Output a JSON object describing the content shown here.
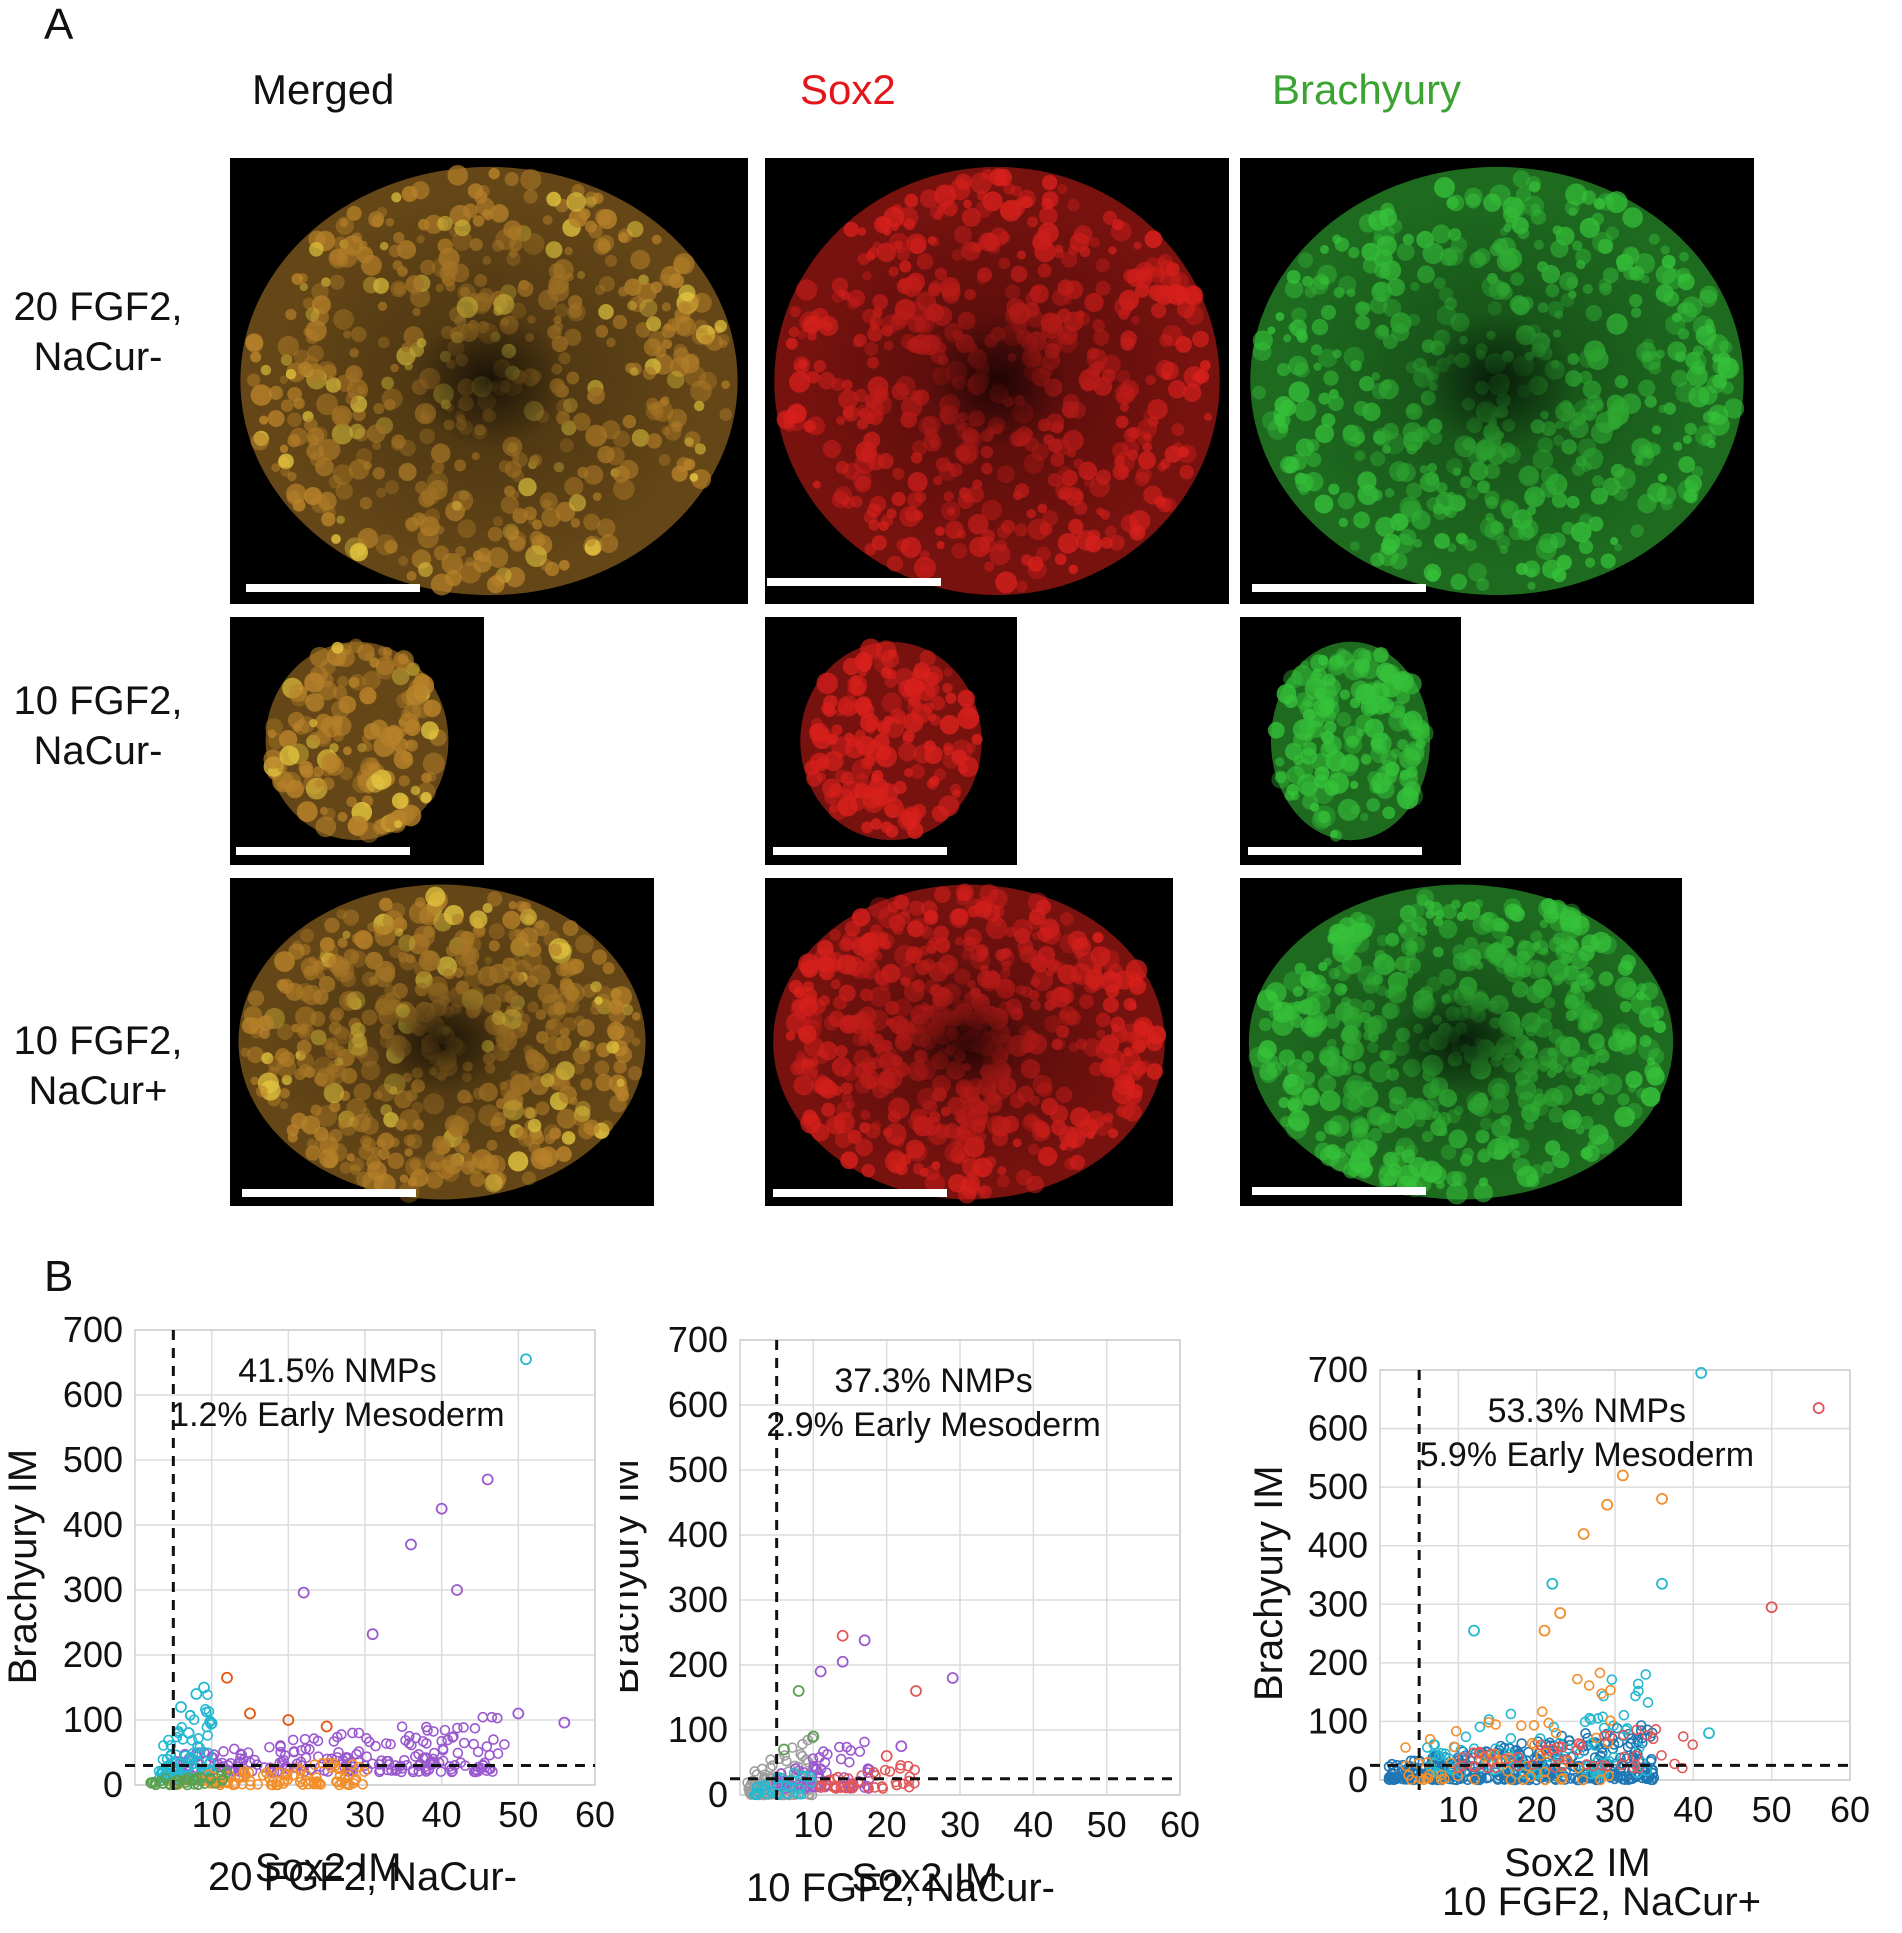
{
  "panel_a": {
    "letter": "A",
    "columns": [
      {
        "label": "Merged",
        "color": "#111111"
      },
      {
        "label": "Sox2",
        "color": "#e3171b"
      },
      {
        "label": "Brachyury",
        "color": "#3aa332"
      }
    ],
    "rows": [
      {
        "line1": "20 FGF2,",
        "line2": "NaCur-"
      },
      {
        "line1": "10 FGF2,",
        "line2": "NaCur-"
      },
      {
        "line1": "10 FGF2,",
        "line2": "NaCur+"
      }
    ],
    "channel_colors": {
      "merged": "#b8822a",
      "sox2": "#d8201c",
      "brachyury": "#36c23a"
    }
  },
  "panel_b": {
    "letter": "B",
    "plots": [
      {
        "caption": "20 FGF2, NaCur-",
        "ylabel": "Brachyury IM",
        "xlabel": "Sox2 IM",
        "annotation_line1": "41.5% NMPs",
        "annotation_line2": "1.2% Early Mesoderm"
      },
      {
        "caption": "10 FGF2, NaCur-",
        "ylabel": "Brachyury IM",
        "xlabel": "Sox2 IM",
        "annotation_line1": "37.3% NMPs",
        "annotation_line2": "2.9% Early Mesoderm"
      },
      {
        "caption": "10 FGF2, NaCur+",
        "ylabel": "Brachyury IM",
        "xlabel": "Sox2 IM",
        "annotation_line1": "53.3% NMPs",
        "annotation_line2": "5.9% Early Mesoderm"
      }
    ]
  },
  "chart_data": [
    {
      "type": "scatter",
      "title": "20 FGF2, NaCur-",
      "xlabel": "Sox2 IM",
      "ylabel": "Brachyury IM",
      "xlim": [
        0,
        60
      ],
      "ylim": [
        0,
        700
      ],
      "xticks": [
        10,
        20,
        30,
        40,
        50,
        60
      ],
      "yticks": [
        0,
        100,
        200,
        300,
        400,
        500,
        600,
        700
      ],
      "grid": true,
      "thresholds": {
        "x": 5,
        "y": 30
      },
      "annotations": [
        "41.5% NMPs",
        "1.2% Early Mesoderm"
      ],
      "series": [
        {
          "color": "#9b59d0",
          "x": [
            40,
            46,
            42,
            36,
            31,
            22,
            50,
            56
          ],
          "y": [
            425,
            470,
            300,
            370,
            232,
            296,
            110,
            96
          ]
        },
        {
          "color": "#24b9d1",
          "x": [
            51,
            9,
            6,
            8,
            10,
            7
          ],
          "y": [
            655,
            150,
            120,
            140,
            95,
            80
          ]
        },
        {
          "color": "#e6550d",
          "x": [
            12,
            15,
            20,
            25
          ],
          "y": [
            165,
            110,
            100,
            90
          ]
        }
      ],
      "clusters": [
        {
          "color": "#9b59d0",
          "x_range": [
            5,
            49
          ],
          "y_range": [
            20,
            110
          ],
          "count": 220
        },
        {
          "color": "#24b9d1",
          "x_range": [
            3,
            10
          ],
          "y_range": [
            10,
            150
          ],
          "count": 90
        },
        {
          "color": "#f28e2b",
          "x_range": [
            5,
            30
          ],
          "y_range": [
            0,
            40
          ],
          "count": 90
        },
        {
          "color": "#59a14f",
          "x_range": [
            2,
            12
          ],
          "y_range": [
            0,
            30
          ],
          "count": 40
        }
      ]
    },
    {
      "type": "scatter",
      "title": "10 FGF2, NaCur-",
      "xlabel": "Sox2 IM",
      "ylabel": "Brachyury IM",
      "xlim": [
        0,
        60
      ],
      "ylim": [
        0,
        700
      ],
      "xticks": [
        10,
        20,
        30,
        40,
        50,
        60
      ],
      "yticks": [
        0,
        100,
        200,
        300,
        400,
        500,
        600,
        700
      ],
      "grid": true,
      "thresholds": {
        "x": 5,
        "y": 25
      },
      "annotations": [
        "37.3% NMPs",
        "2.9% Early Mesoderm"
      ],
      "series": [
        {
          "color": "#9b59d0",
          "x": [
            11,
            14,
            17,
            22,
            29
          ],
          "y": [
            190,
            205,
            238,
            75,
            180
          ]
        },
        {
          "color": "#e15759",
          "x": [
            24,
            14,
            20
          ],
          "y": [
            160,
            245,
            60
          ]
        },
        {
          "color": "#59a14f",
          "x": [
            8,
            10,
            6
          ],
          "y": [
            160,
            90,
            70
          ]
        }
      ],
      "clusters": [
        {
          "color": "#9e9e9e",
          "x_range": [
            1,
            10
          ],
          "y_range": [
            0,
            100
          ],
          "count": 130
        },
        {
          "color": "#9b59d0",
          "x_range": [
            5,
            18
          ],
          "y_range": [
            10,
            100
          ],
          "count": 60
        },
        {
          "color": "#e15759",
          "x_range": [
            10,
            24
          ],
          "y_range": [
            10,
            50
          ],
          "count": 40
        },
        {
          "color": "#24b9d1",
          "x_range": [
            2,
            10
          ],
          "y_range": [
            0,
            50
          ],
          "count": 30
        }
      ]
    },
    {
      "type": "scatter",
      "title": "10 FGF2, NaCur+",
      "xlabel": "Sox2 IM",
      "ylabel": "Brachyury IM",
      "xlim": [
        0,
        60
      ],
      "ylim": [
        0,
        700
      ],
      "xticks": [
        10,
        20,
        30,
        40,
        50,
        60
      ],
      "yticks": [
        0,
        100,
        200,
        300,
        400,
        500,
        600,
        700
      ],
      "grid": true,
      "thresholds": {
        "x": 5,
        "y": 25
      },
      "annotations": [
        "53.3% NMPs",
        "5.9% Early Mesoderm"
      ],
      "series": [
        {
          "color": "#f28e2b",
          "x": [
            29,
            31,
            36,
            26,
            21,
            23
          ],
          "y": [
            470,
            520,
            480,
            420,
            255,
            285
          ]
        },
        {
          "color": "#e15759",
          "x": [
            56,
            50
          ],
          "y": [
            635,
            295
          ]
        },
        {
          "color": "#24b9d1",
          "x": [
            41,
            36,
            22,
            12,
            42
          ],
          "y": [
            695,
            335,
            335,
            255,
            80
          ]
        }
      ],
      "clusters": [
        {
          "color": "#1f77b4",
          "x_range": [
            1,
            35
          ],
          "y_range": [
            0,
            100
          ],
          "count": 380
        },
        {
          "color": "#24b9d1",
          "x_range": [
            5,
            35
          ],
          "y_range": [
            10,
            200
          ],
          "count": 90
        },
        {
          "color": "#f28e2b",
          "x_range": [
            3,
            30
          ],
          "y_range": [
            0,
            200
          ],
          "count": 60
        },
        {
          "color": "#e15759",
          "x_range": [
            10,
            40
          ],
          "y_range": [
            20,
            100
          ],
          "count": 50
        }
      ]
    }
  ]
}
